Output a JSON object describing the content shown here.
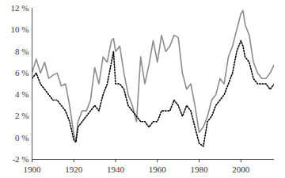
{
  "chart_data": {
    "type": "line",
    "x": [
      1900,
      1902,
      1904,
      1906,
      1908,
      1910,
      1912,
      1914,
      1916,
      1918,
      1920,
      1921,
      1922,
      1924,
      1926,
      1928,
      1930,
      1932,
      1934,
      1936,
      1938,
      1939,
      1940,
      1942,
      1944,
      1946,
      1948,
      1950,
      1952,
      1954,
      1956,
      1958,
      1960,
      1962,
      1964,
      1966,
      1968,
      1970,
      1972,
      1974,
      1976,
      1978,
      1980,
      1982,
      1984,
      1986,
      1988,
      1990,
      1992,
      1994,
      1996,
      1998,
      2000,
      2001,
      2002,
      2004,
      2006,
      2008,
      2010,
      2012,
      2014,
      2016
    ],
    "series": [
      {
        "color": "#8c8c8c",
        "line_style": "solid",
        "values": [
          6.0,
          7.3,
          6.0,
          7.0,
          5.5,
          5.8,
          6.0,
          4.8,
          5.0,
          3.0,
          0.3,
          -0.3,
          1.5,
          2.5,
          2.5,
          3.5,
          6.5,
          5.0,
          7.5,
          7.0,
          9.0,
          9.2,
          8.0,
          8.5,
          6.0,
          4.0,
          3.0,
          1.5,
          7.5,
          5.0,
          6.8,
          9.0,
          7.0,
          9.5,
          8.0,
          8.5,
          9.5,
          9.3,
          6.0,
          4.5,
          5.0,
          3.0,
          0.5,
          1.0,
          2.0,
          3.5,
          4.0,
          5.5,
          5.0,
          7.5,
          8.5,
          10.0,
          11.5,
          11.8,
          10.5,
          9.5,
          7.0,
          6.0,
          5.5,
          5.5,
          6.0,
          6.8
        ]
      },
      {
        "color": "#000000",
        "line_style": "dotted",
        "values": [
          5.5,
          6.0,
          5.0,
          4.5,
          4.0,
          3.5,
          3.5,
          3.0,
          2.5,
          1.5,
          -0.2,
          -0.4,
          1.0,
          1.5,
          2.0,
          2.5,
          3.0,
          2.5,
          4.0,
          5.0,
          7.0,
          8.0,
          5.0,
          5.0,
          4.5,
          3.0,
          2.5,
          2.0,
          1.5,
          1.5,
          1.0,
          1.5,
          1.5,
          2.5,
          2.5,
          2.5,
          3.5,
          3.0,
          2.0,
          3.0,
          2.5,
          1.0,
          -0.5,
          -0.8,
          1.5,
          2.0,
          3.0,
          3.5,
          4.0,
          5.0,
          6.0,
          8.0,
          9.0,
          8.5,
          7.5,
          7.0,
          5.5,
          5.0,
          5.0,
          5.0,
          4.5,
          5.0
        ]
      }
    ],
    "xlim": [
      1900,
      2016
    ],
    "xticks": [
      1900,
      1920,
      1940,
      1960,
      1980,
      2000
    ],
    "ylim": [
      -2,
      12
    ],
    "yticks": [
      {
        "value": -2,
        "label": "-2 %"
      },
      {
        "value": 0,
        "label": "0 %"
      },
      {
        "value": 2,
        "label": "2 %"
      },
      {
        "value": 4,
        "label": "4 %"
      },
      {
        "value": 6,
        "label": "6 %"
      },
      {
        "value": 8,
        "label": "8 %"
      },
      {
        "value": 10,
        "label": "10 %"
      },
      {
        "value": 12,
        "label": "12 %"
      }
    ],
    "grid": false
  }
}
